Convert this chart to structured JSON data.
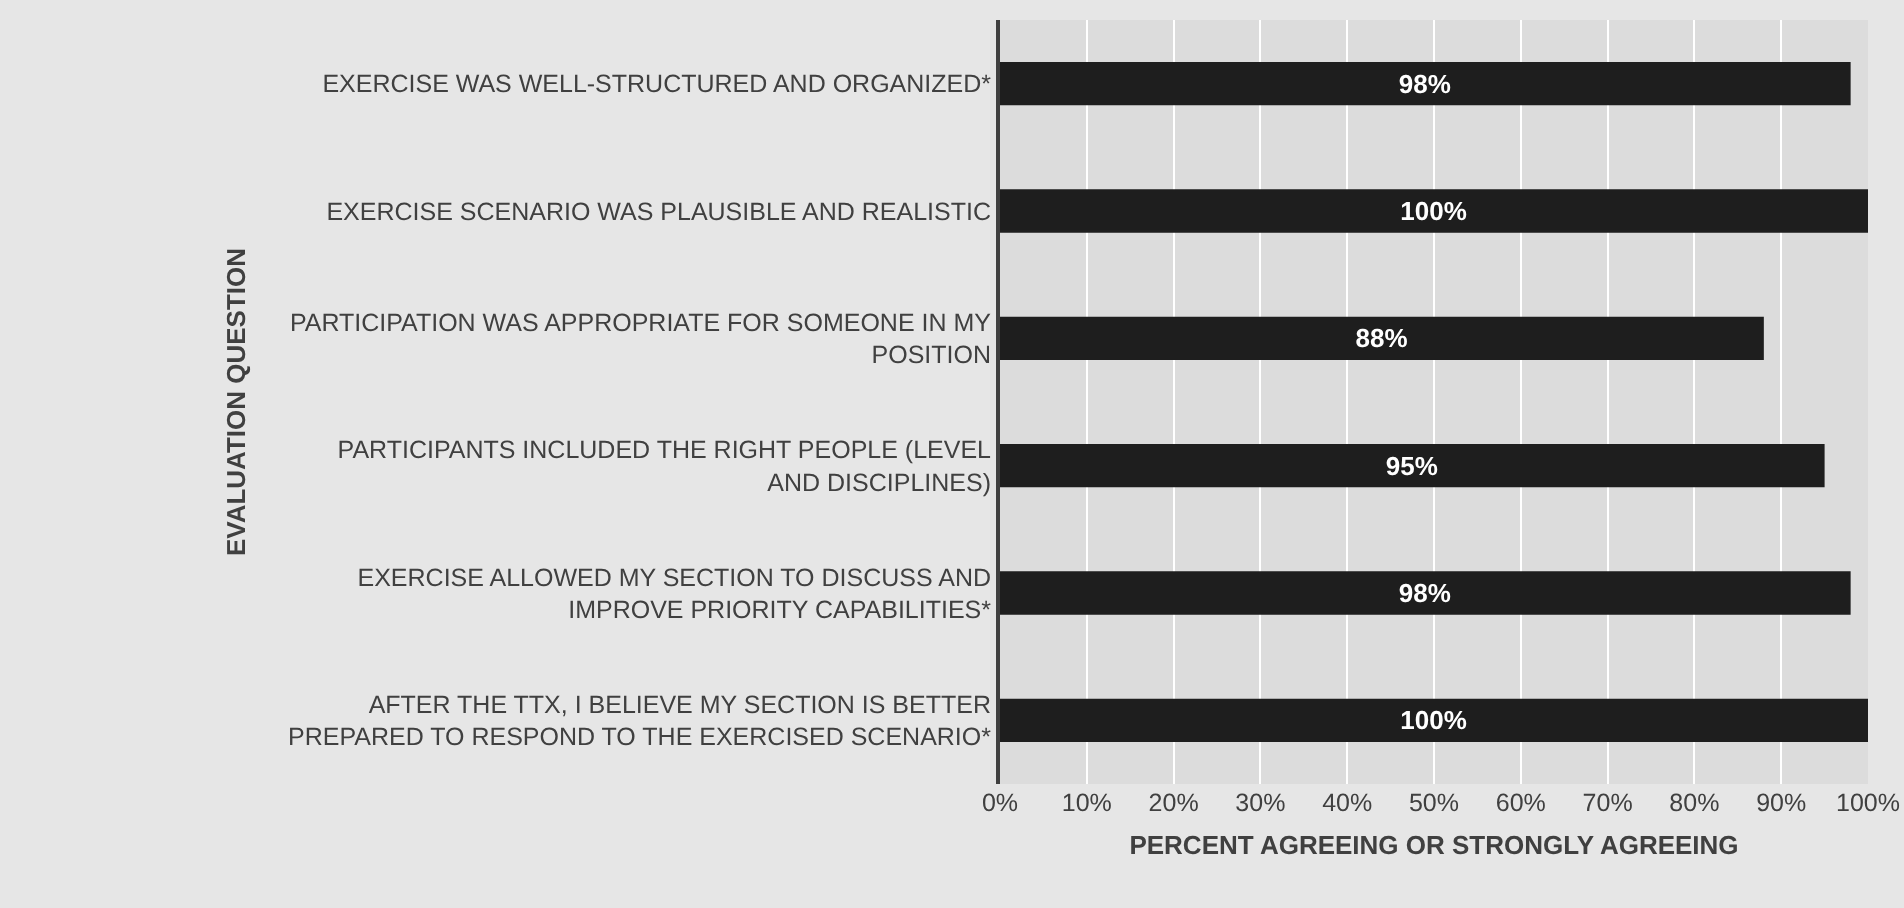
{
  "chart_data": {
    "type": "bar",
    "orientation": "horizontal",
    "categories": [
      "EXERCISE WAS WELL-STRUCTURED AND ORGANIZED*",
      "EXERCISE SCENARIO WAS PLAUSIBLE AND REALISTIC",
      "PARTICIPATION WAS APPROPRIATE FOR SOMEONE IN MY POSITION",
      "PARTICIPANTS INCLUDED THE RIGHT PEOPLE (LEVEL AND DISCIPLINES)",
      "EXERCISE ALLOWED MY SECTION TO DISCUSS AND IMPROVE PRIORITY CAPABILITIES*",
      "AFTER THE TTX, I BELIEVE MY SECTION IS BETTER PREPARED TO RESPOND TO THE EXERCISED SCENARIO*"
    ],
    "values": [
      98,
      100,
      88,
      95,
      98,
      100
    ],
    "value_labels": [
      "98%",
      "100%",
      "88%",
      "95%",
      "98%",
      "100%"
    ],
    "color": "#1e1e1e",
    "xlabel": "PERCENT AGREEING OR STRONGLY AGREEING",
    "ylabel": "EVALUATION QUESTION",
    "xlim": [
      0,
      100
    ],
    "xticks": [
      {
        "value": 0,
        "label": "0%"
      },
      {
        "value": 10,
        "label": "10%"
      },
      {
        "value": 20,
        "label": "20%"
      },
      {
        "value": 30,
        "label": "30%"
      },
      {
        "value": 40,
        "label": "40%"
      },
      {
        "value": 50,
        "label": "50%"
      },
      {
        "value": 60,
        "label": "60%"
      },
      {
        "value": 70,
        "label": "70%"
      },
      {
        "value": 80,
        "label": "80%"
      },
      {
        "value": 90,
        "label": "90%"
      },
      {
        "value": 100,
        "label": "100%"
      }
    ],
    "grid": "x",
    "legend": false
  }
}
